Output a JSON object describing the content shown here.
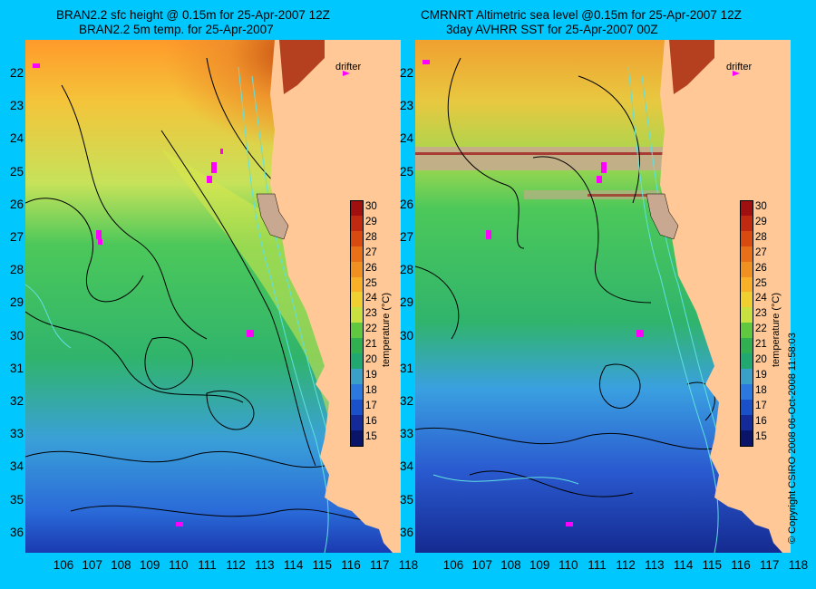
{
  "left_panel": {
    "title_line1": "BRAN2.2 sfc height @ 0.15m for 25-Apr-2007 12Z",
    "title_line2": "BRAN2.2 5m temp. for 25-Apr-2007",
    "drifter_label": "drifter",
    "colorbar_title": "temperature (°C)"
  },
  "right_panel": {
    "title_line1": "CMRNRT Altimetric sea level  @0.15m  for 25-Apr-2007 12Z",
    "title_line2": "3day AVHRR SST for 25-Apr-2007 00Z",
    "drifter_label": "drifter",
    "colorbar_title": "temperature (°C)"
  },
  "credit": "© Copyright CSIRO 2008    06-Oct-2008 11:58:03",
  "lat_labels": [
    "22",
    "23",
    "24",
    "25",
    "26",
    "27",
    "28",
    "29",
    "30",
    "31",
    "32",
    "33",
    "34",
    "35",
    "36"
  ],
  "lon_labels": [
    "106",
    "107",
    "108",
    "109",
    "110",
    "111",
    "112",
    "113",
    "114",
    "115",
    "116",
    "117",
    "118"
  ],
  "colorbar_ticks": [
    "30",
    "29",
    "28",
    "27",
    "26",
    "25",
    "24",
    "23",
    "22",
    "21",
    "20",
    "19",
    "18",
    "17",
    "16",
    "15"
  ],
  "colors": {
    "background": "#00c8ff",
    "land": "#ffc896",
    "drifter": "#ff00ff",
    "contour": "#000000",
    "isobath": "#60e0e0"
  }
}
